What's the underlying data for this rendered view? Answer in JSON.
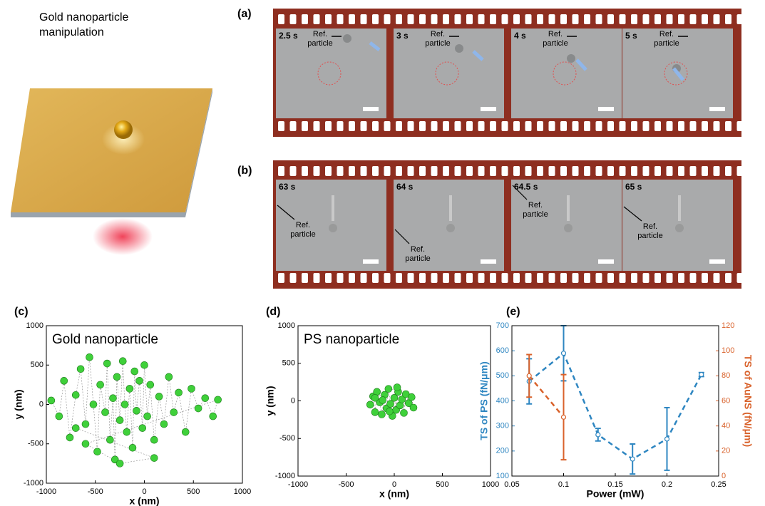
{
  "figure_title": "Gold nanoparticle manipulation",
  "panels": [
    {
      "label": "(a)",
      "frames": [
        {
          "time": "2.5 s",
          "annotation": "Ref. particle"
        },
        {
          "time": "3 s",
          "annotation": "Ref. particle"
        },
        {
          "time": "4 s",
          "annotation": "Ref. particle"
        },
        {
          "time": "5 s",
          "annotation": "Ref. particle"
        }
      ]
    },
    {
      "label": "(b)",
      "frames": [
        {
          "time": "63 s",
          "annotation": "Ref. particle"
        },
        {
          "time": "64 s",
          "annotation": "Ref. particle"
        },
        {
          "time": "64.5 s",
          "annotation": "Ref. particle"
        },
        {
          "time": "65 s",
          "annotation": "Ref. particle"
        }
      ]
    }
  ],
  "chart_data": [
    {
      "type": "scatter",
      "label": "(c)",
      "annotation": "Gold nanoparticle",
      "xlabel": "x (nm)",
      "ylabel": "y (nm)",
      "xlim": [
        -1000,
        1000
      ],
      "ylim": [
        -1000,
        1000
      ],
      "xticks": [
        -1000,
        -500,
        0,
        500,
        1000
      ],
      "yticks": [
        -1000,
        -500,
        0,
        500,
        1000
      ],
      "color": "#3fd03a",
      "x": [
        -950,
        -870,
        -820,
        -760,
        -700,
        -650,
        -600,
        -560,
        -520,
        -480,
        -450,
        -400,
        -380,
        -350,
        -320,
        -300,
        -280,
        -250,
        -220,
        -200,
        -180,
        -150,
        -120,
        -100,
        -80,
        -50,
        -20,
        0,
        30,
        60,
        100,
        150,
        200,
        250,
        300,
        350,
        420,
        480,
        550,
        620,
        700,
        750,
        -600,
        -250,
        100,
        -700
      ],
      "values": [
        50,
        -150,
        300,
        -420,
        120,
        450,
        -250,
        600,
        0,
        -600,
        250,
        -100,
        520,
        -450,
        80,
        -700,
        350,
        -200,
        550,
        0,
        -350,
        200,
        -550,
        420,
        -80,
        300,
        -300,
        500,
        -150,
        250,
        -450,
        100,
        -250,
        350,
        -100,
        150,
        -350,
        200,
        -50,
        80,
        -150,
        60,
        -500,
        -750,
        -680,
        -300
      ]
    },
    {
      "type": "scatter",
      "label": "(d)",
      "annotation": "PS nanoparticle",
      "xlabel": "x (nm)",
      "ylabel": "y (nm)",
      "xlim": [
        -1000,
        1000
      ],
      "ylim": [
        -1000,
        1000
      ],
      "xticks": [
        -1000,
        -500,
        0,
        500,
        1000
      ],
      "yticks": [
        -1000,
        -500,
        0,
        500,
        1000
      ],
      "color": "#3fd03a",
      "x": [
        -250,
        -220,
        -200,
        -180,
        -150,
        -130,
        -100,
        -80,
        -60,
        -40,
        -20,
        0,
        20,
        40,
        60,
        80,
        100,
        120,
        150,
        180,
        200,
        -120,
        -50,
        30,
        -200
      ],
      "values": [
        -50,
        60,
        -150,
        120,
        -20,
        -180,
        80,
        -100,
        160,
        -40,
        -200,
        40,
        -120,
        120,
        -60,
        20,
        -160,
        90,
        -30,
        50,
        -90,
        10,
        -140,
        180,
        40
      ]
    },
    {
      "type": "errorbar",
      "label": "(e)",
      "xlabel": "Power (mW)",
      "ylabel": "TS of PS (fN/μm)",
      "y2label": "TS of AuNS (fN/μm)",
      "xlim": [
        0.05,
        0.25
      ],
      "ylim": [
        100,
        700
      ],
      "y2lim": [
        0,
        120
      ],
      "xticks": [
        0.05,
        0.1,
        0.15,
        0.2,
        0.25
      ],
      "yticks": [
        100,
        200,
        300,
        400,
        500,
        600,
        700
      ],
      "y2ticks": [
        0,
        20,
        40,
        60,
        80,
        100,
        120
      ],
      "series": [
        {
          "color": "#2e86c1",
          "x": [
            0.0667,
            0.1,
            0.1333,
            0.1667,
            0.2,
            0.2333
          ],
          "values": [
            478,
            590,
            265,
            168,
            248,
            505
          ],
          "errors": [
            90,
            110,
            25,
            60,
            125,
            8
          ]
        },
        {
          "color": "#d9622b",
          "axis": "y2",
          "x": [
            0.0667,
            0.1
          ],
          "values": [
            80,
            47
          ],
          "errors": [
            17,
            34
          ]
        }
      ]
    }
  ]
}
